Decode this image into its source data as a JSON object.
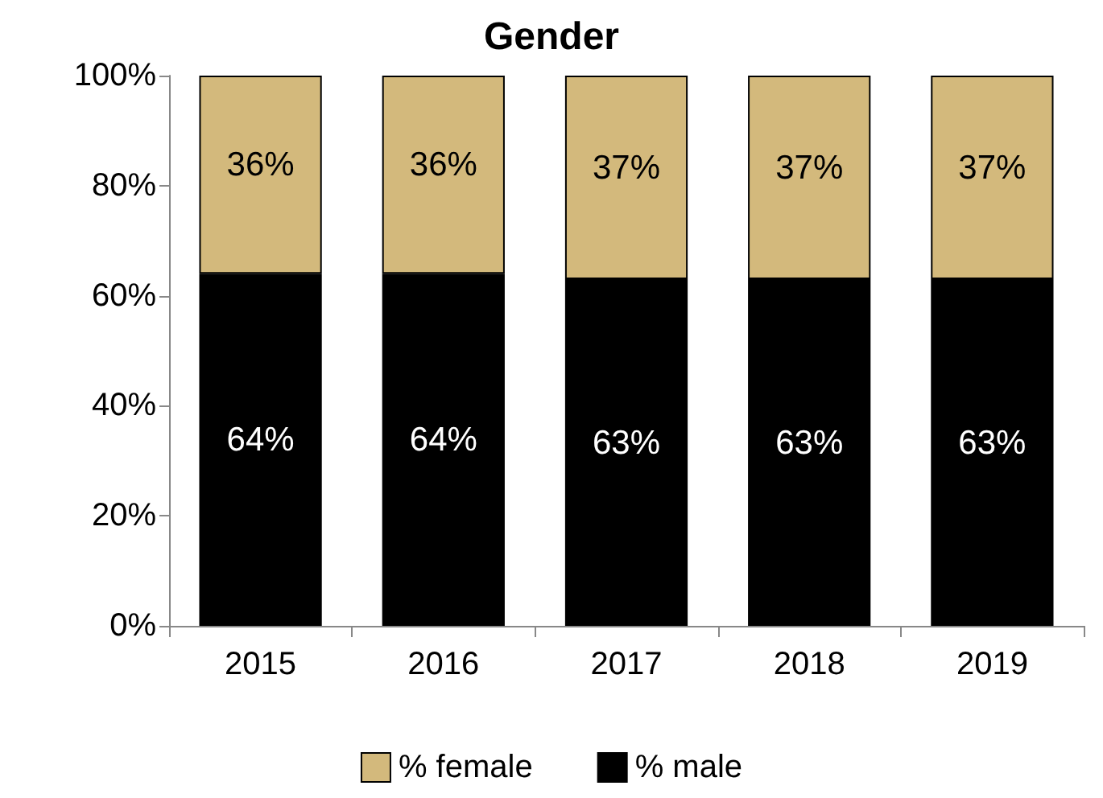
{
  "chart_data": {
    "type": "bar",
    "title": "Gender",
    "stacked": true,
    "categories": [
      "2015",
      "2016",
      "2017",
      "2018",
      "2019"
    ],
    "series": [
      {
        "name": "% male",
        "color": "#000000",
        "values": [
          64,
          64,
          63,
          63,
          63
        ],
        "value_labels": [
          "64%",
          "64%",
          "63%",
          "63%",
          "63%"
        ]
      },
      {
        "name": "% female",
        "color": "#d3b97c",
        "values": [
          36,
          36,
          37,
          37,
          37
        ],
        "value_labels": [
          "36%",
          "36%",
          "37%",
          "37%",
          "37%"
        ]
      }
    ],
    "ylim": [
      0,
      100
    ],
    "yticks": [
      {
        "value": 0,
        "label": "0%"
      },
      {
        "value": 20,
        "label": "20%"
      },
      {
        "value": 40,
        "label": "40%"
      },
      {
        "value": 60,
        "label": "60%"
      },
      {
        "value": 80,
        "label": "80%"
      },
      {
        "value": 100,
        "label": "100%"
      }
    ],
    "grid": false,
    "legend": "bottom"
  }
}
